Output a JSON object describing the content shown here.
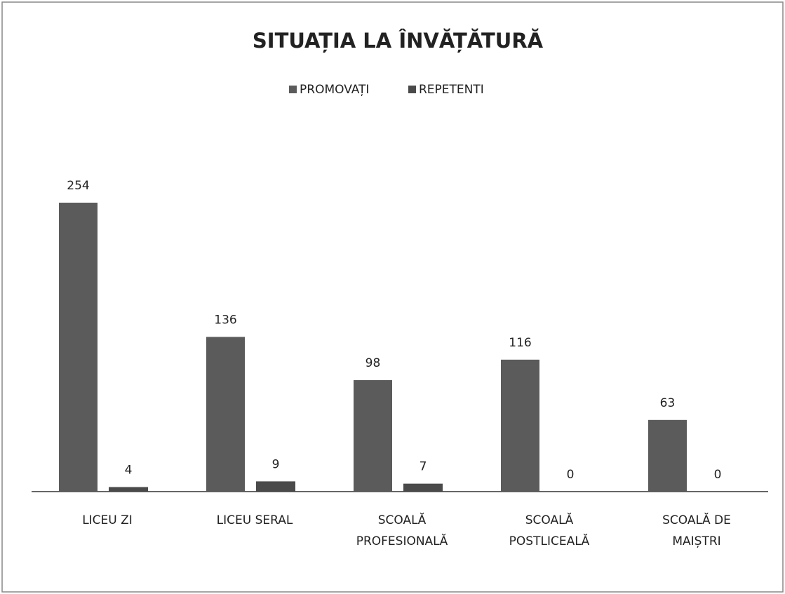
{
  "chart_data": {
    "type": "bar",
    "title": "SITUAȚIA LA ÎNVĂȚĂTURĂ",
    "categories": [
      "LICEU ZI",
      "LICEU SERAL",
      "SCOALĂ PROFESIONALĂ",
      "SCOALĂ POSTLICEALĂ",
      "SCOALĂ DE MAIȘTRI"
    ],
    "series": [
      {
        "name": "PROMOVAȚI",
        "color": "#5b5b5b",
        "values": [
          254,
          136,
          98,
          116,
          63
        ]
      },
      {
        "name": "REPETENTI",
        "color": "#4a4a4a",
        "values": [
          4,
          9,
          7,
          0,
          0
        ]
      }
    ],
    "legend": "top"
  }
}
